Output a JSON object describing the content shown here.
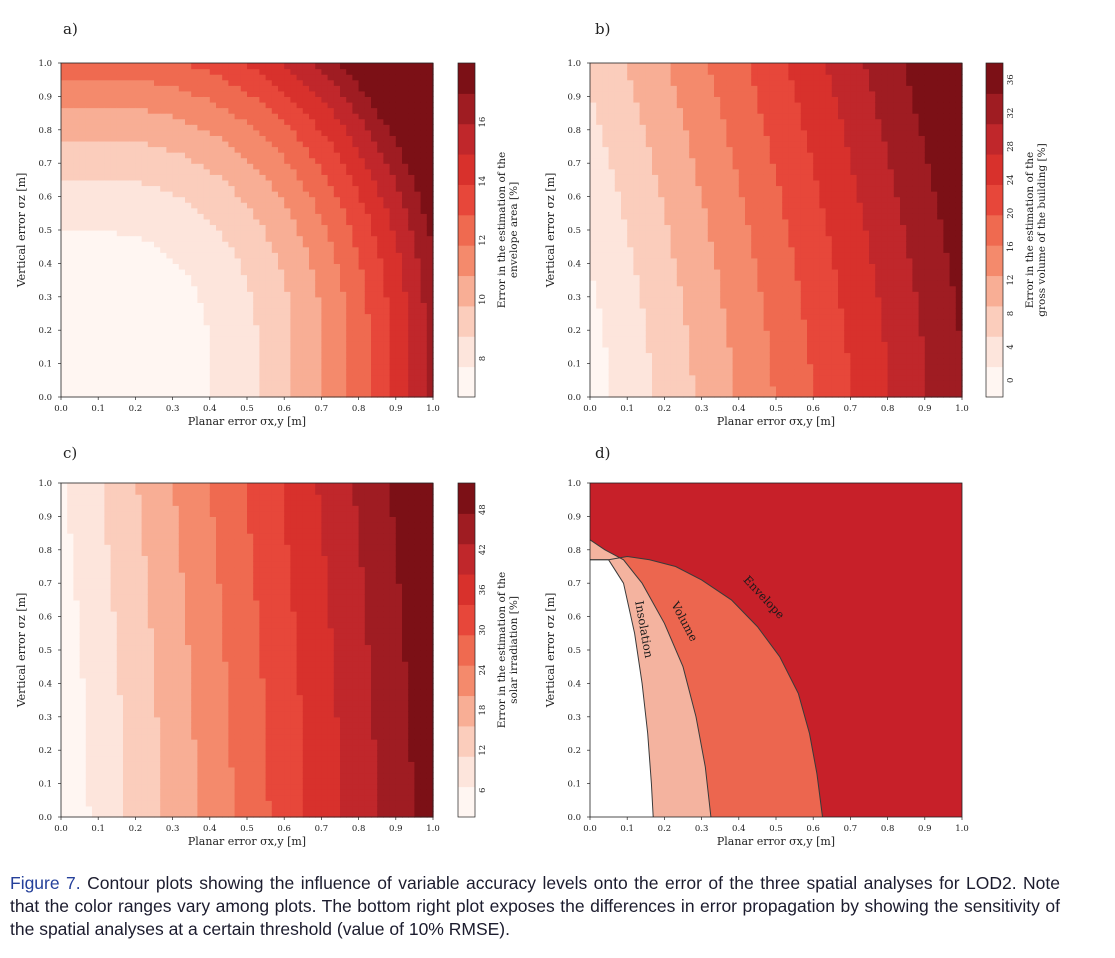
{
  "colors": {
    "ramp": [
      "#fff6f2",
      "#fde5dc",
      "#fbcdbc",
      "#f8ae95",
      "#f48a6c",
      "#ef6a50",
      "#e7473a",
      "#d8312c",
      "#c0272b",
      "#9f1c22",
      "#7c1016"
    ],
    "region_volume": "#f4b39f",
    "region_envelope": "#ec664f",
    "region_outside": "#c72029",
    "caption_label": "#25409a"
  },
  "chart_data": [
    {
      "panel": "a)",
      "type": "heatmap",
      "xlabel": "Planar error σx,y [m]",
      "ylabel": "Vertical error σz [m]",
      "xlim": [
        0,
        1
      ],
      "ylim": [
        0,
        1
      ],
      "x_ticks": [
        "0.0",
        "0.1",
        "0.2",
        "0.3",
        "0.4",
        "0.5",
        "0.6",
        "0.7",
        "0.8",
        "0.9",
        "1.0"
      ],
      "y_ticks": [
        "0.0",
        "0.1",
        "0.2",
        "0.3",
        "0.4",
        "0.5",
        "0.6",
        "0.7",
        "0.8",
        "0.9",
        "1.0"
      ],
      "colorbar": {
        "label_line1": "Error in the estimation of the",
        "label_line2": "envelope area [%]",
        "ticks": [
          "8",
          "10",
          "12",
          "14",
          "16"
        ],
        "range": [
          6.7,
          18
        ]
      },
      "field": {
        "base": 6.9,
        "x_gain": 9.5,
        "y_gain": 5.5,
        "min_x": 0.1,
        "min_y": 0.15,
        "x_exp": 2.2,
        "y_exp": 2.1,
        "x_weight": 1.0,
        "y_weight": 0.5
      }
    },
    {
      "panel": "b)",
      "type": "heatmap",
      "xlabel": "Planar error σx,y [m]",
      "ylabel": "Vertical error σz [m]",
      "xlim": [
        0,
        1
      ],
      "ylim": [
        0,
        1
      ],
      "x_ticks": [
        "0.0",
        "0.1",
        "0.2",
        "0.3",
        "0.4",
        "0.5",
        "0.6",
        "0.7",
        "0.8",
        "0.9",
        "1.0"
      ],
      "y_ticks": [
        "0.0",
        "0.1",
        "0.2",
        "0.3",
        "0.4",
        "0.5",
        "0.6",
        "0.7",
        "0.8",
        "0.9",
        "1.0"
      ],
      "colorbar": {
        "label_line1": "Error in the estimation of the",
        "label_line2": "gross volume of the building [%]",
        "ticks": [
          "0",
          "4",
          "8",
          "12",
          "16",
          "20",
          "24",
          "28",
          "32",
          "36"
        ],
        "range": [
          -2,
          38
        ]
      },
      "field": {
        "base": 0,
        "x_gain": 34,
        "y_gain": 6,
        "min_x": 0,
        "min_y": 0,
        "x_exp": 1.05,
        "y_exp": 1.4,
        "x_weight": 1.0,
        "y_weight": 0.0
      }
    },
    {
      "panel": "c)",
      "type": "heatmap",
      "xlabel": "Planar error σx,y [m]",
      "ylabel": "Vertical error σz [m]",
      "xlim": [
        0,
        1
      ],
      "ylim": [
        0,
        1
      ],
      "x_ticks": [
        "0.0",
        "0.1",
        "0.2",
        "0.3",
        "0.4",
        "0.5",
        "0.6",
        "0.7",
        "0.8",
        "0.9",
        "1.0"
      ],
      "y_ticks": [
        "0.0",
        "0.1",
        "0.2",
        "0.3",
        "0.4",
        "0.5",
        "0.6",
        "0.7",
        "0.8",
        "0.9",
        "1.0"
      ],
      "colorbar": {
        "label_line1": "Error in the estimation of the",
        "label_line2": "solar irradiation [%]",
        "ticks": [
          "6",
          "12",
          "18",
          "24",
          "30",
          "36",
          "42",
          "48"
        ],
        "range": [
          2,
          52
        ]
      },
      "field": {
        "base": 3,
        "x_gain": 47,
        "y_gain": 3,
        "min_x": 0,
        "min_y": 0,
        "x_exp": 1.0,
        "y_exp": 1.5,
        "x_weight": 1.0,
        "y_weight": 0.0
      }
    },
    {
      "panel": "d)",
      "type": "area",
      "xlabel": "Planar error σx,y [m]",
      "ylabel": "Vertical error σz [m]",
      "xlim": [
        0,
        1
      ],
      "ylim": [
        0,
        1
      ],
      "x_ticks": [
        "0.0",
        "0.1",
        "0.2",
        "0.3",
        "0.4",
        "0.5",
        "0.6",
        "0.7",
        "0.8",
        "0.9",
        "1.0"
      ],
      "y_ticks": [
        "0.0",
        "0.1",
        "0.2",
        "0.3",
        "0.4",
        "0.5",
        "0.6",
        "0.7",
        "0.8",
        "0.9",
        "1.0"
      ],
      "threshold_curves": [
        {
          "name": "Insolation",
          "points": [
            [
              0,
              0.77
            ],
            [
              0.05,
              0.77
            ],
            [
              0.09,
              0.7
            ],
            [
              0.12,
              0.55
            ],
            [
              0.14,
              0.4
            ],
            [
              0.155,
              0.25
            ],
            [
              0.165,
              0.1
            ],
            [
              0.17,
              0
            ]
          ]
        },
        {
          "name": "Volume",
          "points": [
            [
              0,
              0.83
            ],
            [
              0.04,
              0.8
            ],
            [
              0.09,
              0.77
            ],
            [
              0.14,
              0.7
            ],
            [
              0.2,
              0.58
            ],
            [
              0.25,
              0.45
            ],
            [
              0.285,
              0.3
            ],
            [
              0.31,
              0.15
            ],
            [
              0.325,
              0
            ]
          ]
        },
        {
          "name": "Envelope",
          "points": [
            [
              0,
              0.77
            ],
            [
              0.05,
              0.77
            ],
            [
              0.1,
              0.78
            ],
            [
              0.16,
              0.77
            ],
            [
              0.23,
              0.75
            ],
            [
              0.3,
              0.71
            ],
            [
              0.38,
              0.65
            ],
            [
              0.45,
              0.57
            ],
            [
              0.51,
              0.48
            ],
            [
              0.56,
              0.37
            ],
            [
              0.59,
              0.25
            ],
            [
              0.61,
              0.13
            ],
            [
              0.625,
              0
            ]
          ]
        }
      ],
      "curve_labels": [
        "Insolation",
        "Volume",
        "Envelope"
      ]
    }
  ],
  "caption": {
    "label": "Figure 7.",
    "text": " Contour plots showing the influence of variable accuracy levels onto the error of the three spatial analyses for LOD2. Note that the color ranges vary among plots. The bottom right plot exposes the differences in error propagation by showing the sensitivity of the spatial analyses at a certain threshold (value of 10% RMSE)."
  }
}
